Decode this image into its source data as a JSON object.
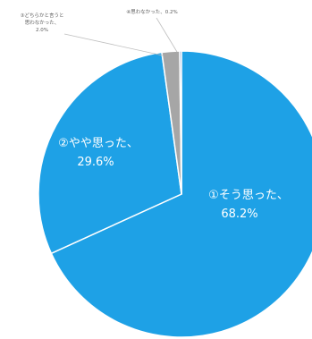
{
  "chart_data": {
    "type": "pie",
    "title": "",
    "start": "top",
    "direction": "clockwise",
    "slices": [
      {
        "name": "①そう思った",
        "value": 68.2,
        "label": "68.2%",
        "color": "#1ea1e6",
        "label_color": "#ffffff"
      },
      {
        "name": "②やや思った",
        "value": 29.6,
        "label": "29.6%",
        "color": "#1ea1e6",
        "label_color": "#ffffff"
      },
      {
        "name": "③どちらかと言うと思わなかった",
        "value": 2.0,
        "label": "2.0%",
        "color": "#a6a6a6",
        "label_color": "#595959"
      },
      {
        "name": "④思わなかった",
        "value": 0.2,
        "label": "0.2%",
        "color": "#4472c4",
        "label_color": "#595959"
      }
    ],
    "slice_border_color": "#ffffff",
    "legend": "none"
  },
  "labels": {
    "s1_name": "①そう思った、",
    "s1_value": "68.2%",
    "s2_name": "②やや思った、",
    "s2_value": "29.6%",
    "s3_line1": "③どちらかと言うと",
    "s3_line2": "思わなかった、",
    "s3_value": "2.0%",
    "s4_text": "④思わなかった、0.2%"
  }
}
